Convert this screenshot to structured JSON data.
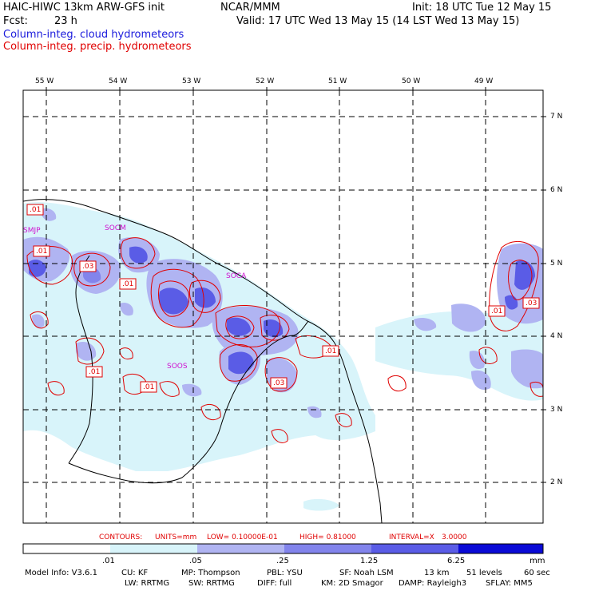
{
  "header": {
    "model_title": "HAIC-HIWC 13km ARW-GFS init",
    "center": "NCAR/MMM",
    "init": "Init: 18 UTC Tue 12 May 15",
    "fcst_label": "Fcst:",
    "fcst_value": "23 h",
    "valid": "Valid: 17 UTC Wed 13 May 15 (14 LST Wed 13 May 15)",
    "field_cloud": "Column-integ. cloud hydrometeors",
    "field_precip": "Column-integ. precip. hydrometeors"
  },
  "colors": {
    "cloud_legend": "#1a1adc",
    "precip_contour": "#e00000",
    "shade_1": "#d8f4fa",
    "shade_2": "#b0b4f2",
    "shade_3": "#8284ec",
    "shade_4": "#5a5ce6",
    "shade_5": "#2d2ee2",
    "shade_6": "#0a0ad6"
  },
  "map": {
    "lon_labels": [
      "55 W",
      "54 W",
      "53 W",
      "52 W",
      "51 W",
      "50 W",
      "49 W"
    ],
    "lat_labels": [
      "7 N",
      "6 N",
      "5 N",
      "4 N",
      "3 N",
      "2 N"
    ],
    "stations": [
      "SMJP",
      "SOCM",
      "SOCA",
      "SOOS"
    ],
    "contour_labels": [
      ".01",
      ".01",
      ".03",
      ".01",
      ".01",
      ".01",
      ".03",
      ".01",
      ".01",
      ".03"
    ]
  },
  "contour_info": {
    "contours": "CONTOURS:",
    "units": "UNITS=mm",
    "low": "LOW= 0.10000E-01",
    "high": "HIGH= 0.81000",
    "interval": "INTERVAL=X",
    "interval_value": "3.0000"
  },
  "colorbar": {
    "ticks": [
      ".01",
      ".05",
      ".25",
      "1.25",
      "6.25"
    ],
    "unit": "mm"
  },
  "footer": {
    "line1": [
      "Model Info: V3.6.1",
      "CU: KF",
      "MP: Thompson",
      "PBL: YSU",
      "SF: Noah LSM",
      "13 km",
      "51 levels",
      "60 sec"
    ],
    "line2": [
      "LW: RRTMG",
      "SW: RRTMG",
      "DIFF: full",
      "KM: 2D Smagor",
      "DAMP: Rayleigh3",
      "SFLAY: MM5"
    ]
  }
}
